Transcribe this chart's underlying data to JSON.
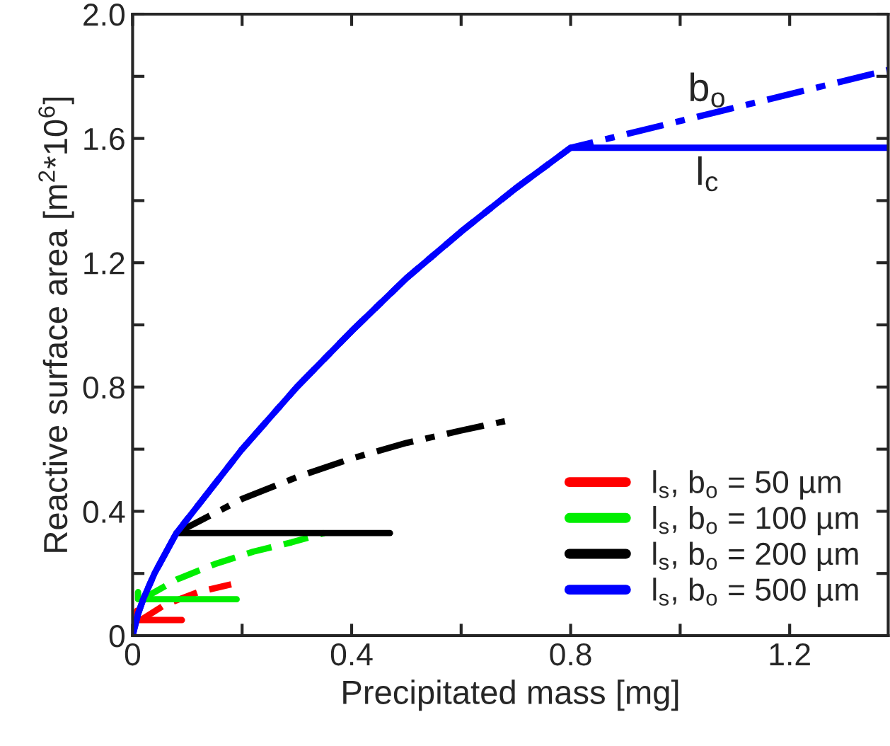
{
  "chart_data": {
    "type": "line",
    "xlabel": "Precipitated mass [mg]",
    "ylabel": "Reactive surface area [m$^{2}$*10$^{6}$]",
    "xlim": [
      0,
      1.38
    ],
    "ylim": [
      0,
      2.0
    ],
    "xticks": [
      0,
      {
        "value": 0.2,
        "label": null
      },
      0.4,
      {
        "value": 0.6,
        "label": null
      },
      0.8,
      {
        "value": 1.0,
        "label": null
      },
      1.2
    ],
    "yticks": [
      0,
      {
        "value": 0.2,
        "label": null
      },
      0.4,
      {
        "value": 0.6,
        "label": null
      },
      0.8,
      {
        "value": 1.0,
        "label": null
      },
      1.2,
      {
        "value": 1.4,
        "label": null
      },
      1.6,
      {
        "value": 1.8,
        "label": null
      },
      {
        "value": 2.0,
        "label": "2.0"
      }
    ],
    "grid": false,
    "legend": "bottom right",
    "marker": "none",
    "series": [
      {
        "name": "l$_{s}$, b$_{o}$ = 50 µm",
        "color": "#ff0000",
        "line_style": "solid",
        "x": [
          0.008,
          0.008,
          0.09
        ],
        "values": [
          0.08,
          0.05,
          0.05
        ]
      },
      {
        "color": "#ff0000",
        "line_style": "dashed",
        "x": [
          0.015,
          0.06,
          0.12,
          0.18
        ],
        "values": [
          0.05,
          0.1,
          0.14,
          0.165
        ]
      },
      {
        "name": "l$_{s}$, b$_{o}$ = 100 µm",
        "color": "#00ee00",
        "line_style": "solid",
        "x": [
          0.01,
          0.01,
          0.19
        ],
        "values": [
          0.14,
          0.117,
          0.117
        ]
      },
      {
        "color": "#00ee00",
        "line_style": "dashed",
        "x": [
          0.02,
          0.08,
          0.15,
          0.22,
          0.29,
          0.35
        ],
        "values": [
          0.12,
          0.18,
          0.23,
          0.27,
          0.3,
          0.33
        ]
      },
      {
        "name": "l$_{s}$, b$_{o}$ = 200 µm",
        "color": "#000000",
        "line_style": "solid",
        "x": [
          0.08,
          0.47
        ],
        "values": [
          0.33,
          0.33
        ]
      },
      {
        "color": "#000000",
        "line_style": "dashdot",
        "x": [
          0.08,
          0.2,
          0.3,
          0.4,
          0.5,
          0.6,
          0.68
        ],
        "values": [
          0.33,
          0.44,
          0.51,
          0.57,
          0.62,
          0.66,
          0.69
        ]
      },
      {
        "color": "#0000ff",
        "line_style": "dashdot",
        "x": [
          0,
          0.01,
          0.02,
          0.04,
          0.08,
          0.12,
          0.2,
          0.3,
          0.4,
          0.5,
          0.6,
          0.7,
          0.8,
          1.38
        ],
        "values": [
          0,
          0.07,
          0.12,
          0.2,
          0.33,
          0.42,
          0.6,
          0.8,
          0.98,
          1.15,
          1.3,
          1.44,
          1.57,
          1.82
        ]
      },
      {
        "name": "l$_{s}$, b$_{o}$ = 500 µm",
        "color": "#0000ff",
        "line_style": "solid",
        "x": [
          0,
          0.01,
          0.02,
          0.04,
          0.08,
          0.12,
          0.2,
          0.3,
          0.4,
          0.5,
          0.6,
          0.7,
          0.8,
          1.38
        ],
        "values": [
          0,
          0.07,
          0.12,
          0.2,
          0.33,
          0.42,
          0.6,
          0.8,
          0.98,
          1.15,
          1.3,
          1.44,
          1.57,
          1.57
        ]
      }
    ],
    "annotations": [
      "b$_{o}$",
      "l$_{c}$"
    ]
  }
}
